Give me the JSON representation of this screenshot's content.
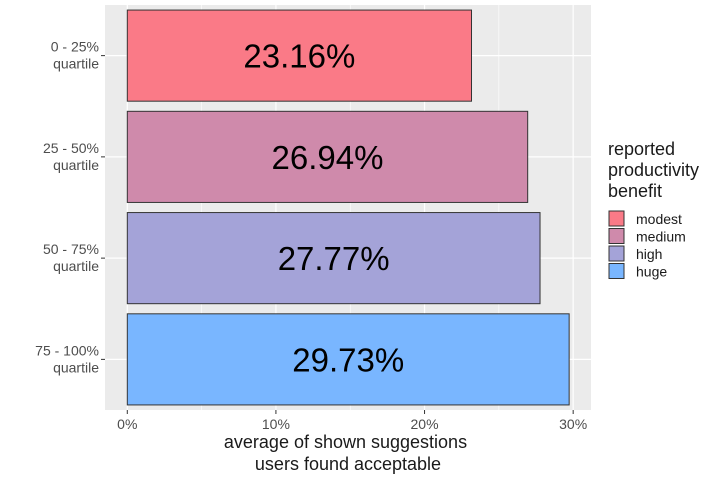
{
  "chart_data": {
    "type": "bar",
    "orientation": "horizontal",
    "categories": [
      [
        "0 - 25%",
        "quartile"
      ],
      [
        "25 - 50%",
        "quartile"
      ],
      [
        "50 - 75%",
        "quartile"
      ],
      [
        "75 - 100%",
        "quartile"
      ]
    ],
    "values": [
      23.16,
      26.94,
      27.77,
      29.73
    ],
    "value_labels": [
      "23.16%",
      "26.94%",
      "27.77%",
      "29.73%"
    ],
    "xlabel": [
      "average of shown suggestions",
      "users found acceptable"
    ],
    "ylabel": "",
    "xlim": [
      -1.5,
      31.2
    ],
    "x_ticks": [
      0,
      10,
      20,
      30
    ],
    "x_tick_labels": [
      "0%",
      "10%",
      "20%",
      "30%"
    ],
    "grid": true,
    "legend": {
      "title": [
        "reported",
        "productivity",
        "benefit"
      ],
      "placement": "right",
      "entries": [
        "modest",
        "medium",
        "high",
        "huge"
      ]
    },
    "colors": [
      "#f8766d",
      "#cf87a8",
      "#a3a3d7",
      "#79b5ff"
    ],
    "bar_colors": [
      "#fa7a87",
      "#cf8aab",
      "#a4a3d8",
      "#79b6ff"
    ],
    "panel_background": "#ebebeb",
    "grid_color": "#ffffff"
  }
}
